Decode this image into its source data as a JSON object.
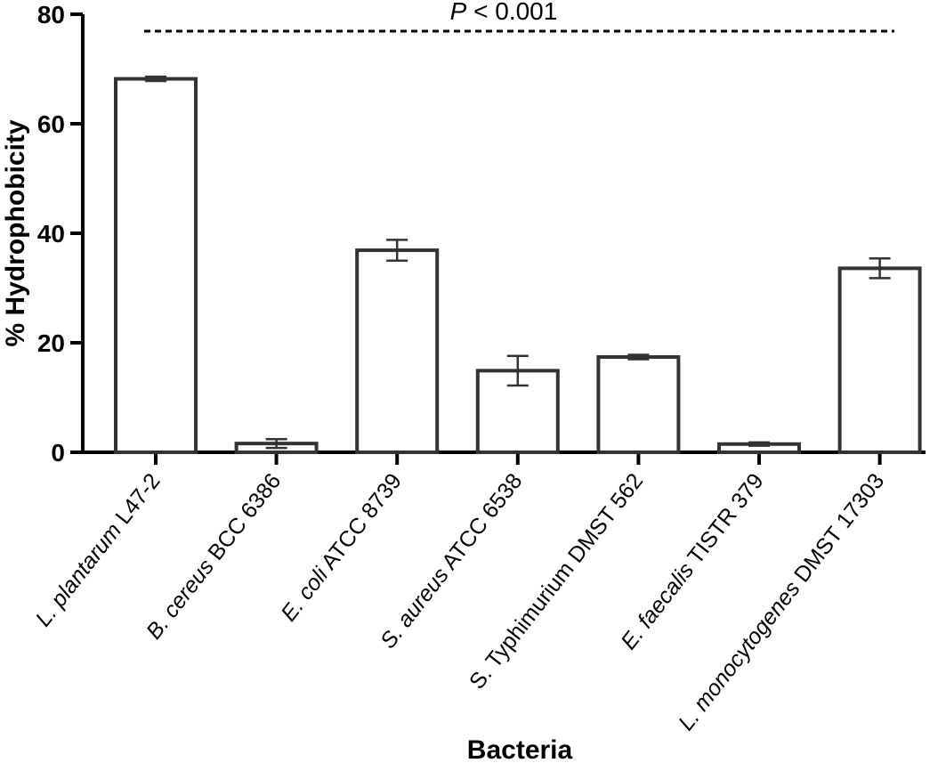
{
  "chart_data": {
    "type": "bar",
    "categories": [
      {
        "italic": "L. plantarum",
        "plain": " L47-2"
      },
      {
        "italic": "B. cereus",
        "plain": " BCC 6386"
      },
      {
        "italic": "E. coli",
        "plain": " ATCC 8739"
      },
      {
        "italic": "S. aureus",
        "plain": " ATCC 6538"
      },
      {
        "italic": "",
        "plain": "S. Typhimurium DMST 562"
      },
      {
        "italic": "E. faecalis",
        "plain": " TISTR 379"
      },
      {
        "italic": "L. monocytogenes",
        "plain": " DMST 17303"
      }
    ],
    "values": [
      68.2,
      1.6,
      36.9,
      14.9,
      17.4,
      1.5,
      33.6
    ],
    "errors": [
      0.4,
      0.8,
      1.9,
      2.7,
      0.4,
      0.3,
      1.8
    ],
    "xlabel": "Bacteria",
    "ylabel": "% Hydrophobicity",
    "ylim": [
      0,
      80
    ],
    "yticks": [
      0,
      20,
      40,
      60,
      80
    ],
    "annotation": {
      "italic": "P",
      "plain": " < 0.001"
    },
    "grid": false,
    "colors": {
      "bar_fill": "#ffffff",
      "bar_stroke": "#333333",
      "axis": "#000000"
    }
  }
}
